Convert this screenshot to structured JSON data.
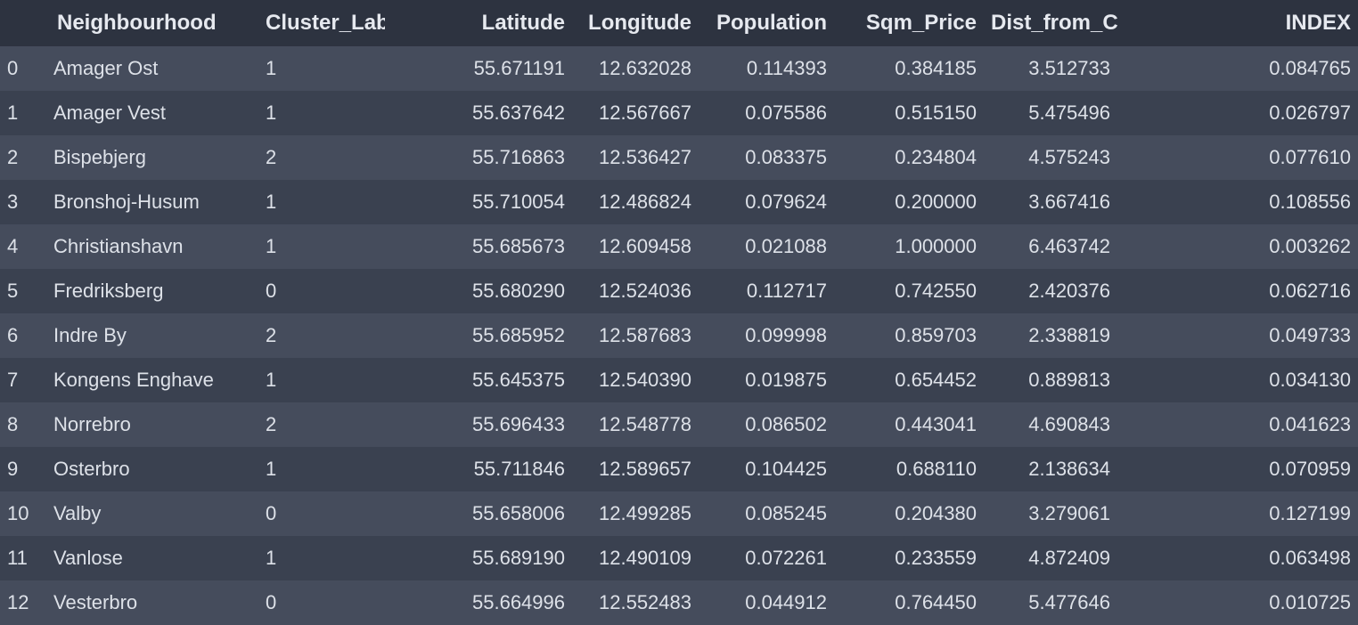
{
  "table": {
    "columns": {
      "index": "",
      "neighbourhood": "Neighbourhood",
      "cluster_labels": "Cluster_Labels",
      "latitude": "Latitude",
      "longitude": "Longitude",
      "population": "Population",
      "sqm_price": "Sqm_Price",
      "dist_from_center": "Dist_from_Center",
      "index_value": "INDEX"
    },
    "rows": [
      {
        "idx": "0",
        "neighbourhood": "Amager Ost",
        "cluster": "1",
        "lat": "55.671191",
        "lon": "12.632028",
        "pop": "0.114393",
        "sqm": "0.384185",
        "dist": "3.512733",
        "index": "0.084765"
      },
      {
        "idx": "1",
        "neighbourhood": "Amager Vest",
        "cluster": "1",
        "lat": "55.637642",
        "lon": "12.567667",
        "pop": "0.075586",
        "sqm": "0.515150",
        "dist": "5.475496",
        "index": "0.026797"
      },
      {
        "idx": "2",
        "neighbourhood": "Bispebjerg",
        "cluster": "2",
        "lat": "55.716863",
        "lon": "12.536427",
        "pop": "0.083375",
        "sqm": "0.234804",
        "dist": "4.575243",
        "index": "0.077610"
      },
      {
        "idx": "3",
        "neighbourhood": "Bronshoj-Husum",
        "cluster": "1",
        "lat": "55.710054",
        "lon": "12.486824",
        "pop": "0.079624",
        "sqm": "0.200000",
        "dist": "3.667416",
        "index": "0.108556"
      },
      {
        "idx": "4",
        "neighbourhood": "Christianshavn",
        "cluster": "1",
        "lat": "55.685673",
        "lon": "12.609458",
        "pop": "0.021088",
        "sqm": "1.000000",
        "dist": "6.463742",
        "index": "0.003262"
      },
      {
        "idx": "5",
        "neighbourhood": "Fredriksberg",
        "cluster": "0",
        "lat": "55.680290",
        "lon": "12.524036",
        "pop": "0.112717",
        "sqm": "0.742550",
        "dist": "2.420376",
        "index": "0.062716"
      },
      {
        "idx": "6",
        "neighbourhood": "Indre By",
        "cluster": "2",
        "lat": "55.685952",
        "lon": "12.587683",
        "pop": "0.099998",
        "sqm": "0.859703",
        "dist": "2.338819",
        "index": "0.049733"
      },
      {
        "idx": "7",
        "neighbourhood": "Kongens Enghave",
        "cluster": "1",
        "lat": "55.645375",
        "lon": "12.540390",
        "pop": "0.019875",
        "sqm": "0.654452",
        "dist": "0.889813",
        "index": "0.034130"
      },
      {
        "idx": "8",
        "neighbourhood": "Norrebro",
        "cluster": "2",
        "lat": "55.696433",
        "lon": "12.548778",
        "pop": "0.086502",
        "sqm": "0.443041",
        "dist": "4.690843",
        "index": "0.041623"
      },
      {
        "idx": "9",
        "neighbourhood": "Osterbro",
        "cluster": "1",
        "lat": "55.711846",
        "lon": "12.589657",
        "pop": "0.104425",
        "sqm": "0.688110",
        "dist": "2.138634",
        "index": "0.070959"
      },
      {
        "idx": "10",
        "neighbourhood": "Valby",
        "cluster": "0",
        "lat": "55.658006",
        "lon": "12.499285",
        "pop": "0.085245",
        "sqm": "0.204380",
        "dist": "3.279061",
        "index": "0.127199"
      },
      {
        "idx": "11",
        "neighbourhood": "Vanlose",
        "cluster": "1",
        "lat": "55.689190",
        "lon": "12.490109",
        "pop": "0.072261",
        "sqm": "0.233559",
        "dist": "4.872409",
        "index": "0.063498"
      },
      {
        "idx": "12",
        "neighbourhood": "Vesterbro",
        "cluster": "0",
        "lat": "55.664996",
        "lon": "12.552483",
        "pop": "0.044912",
        "sqm": "0.764450",
        "dist": "5.477646",
        "index": "0.010725"
      }
    ]
  },
  "colors": {
    "header_bg": "#2d3340",
    "row_odd_bg": "#454c5c",
    "row_even_bg": "#3a4150",
    "text": "#dde1e8"
  }
}
